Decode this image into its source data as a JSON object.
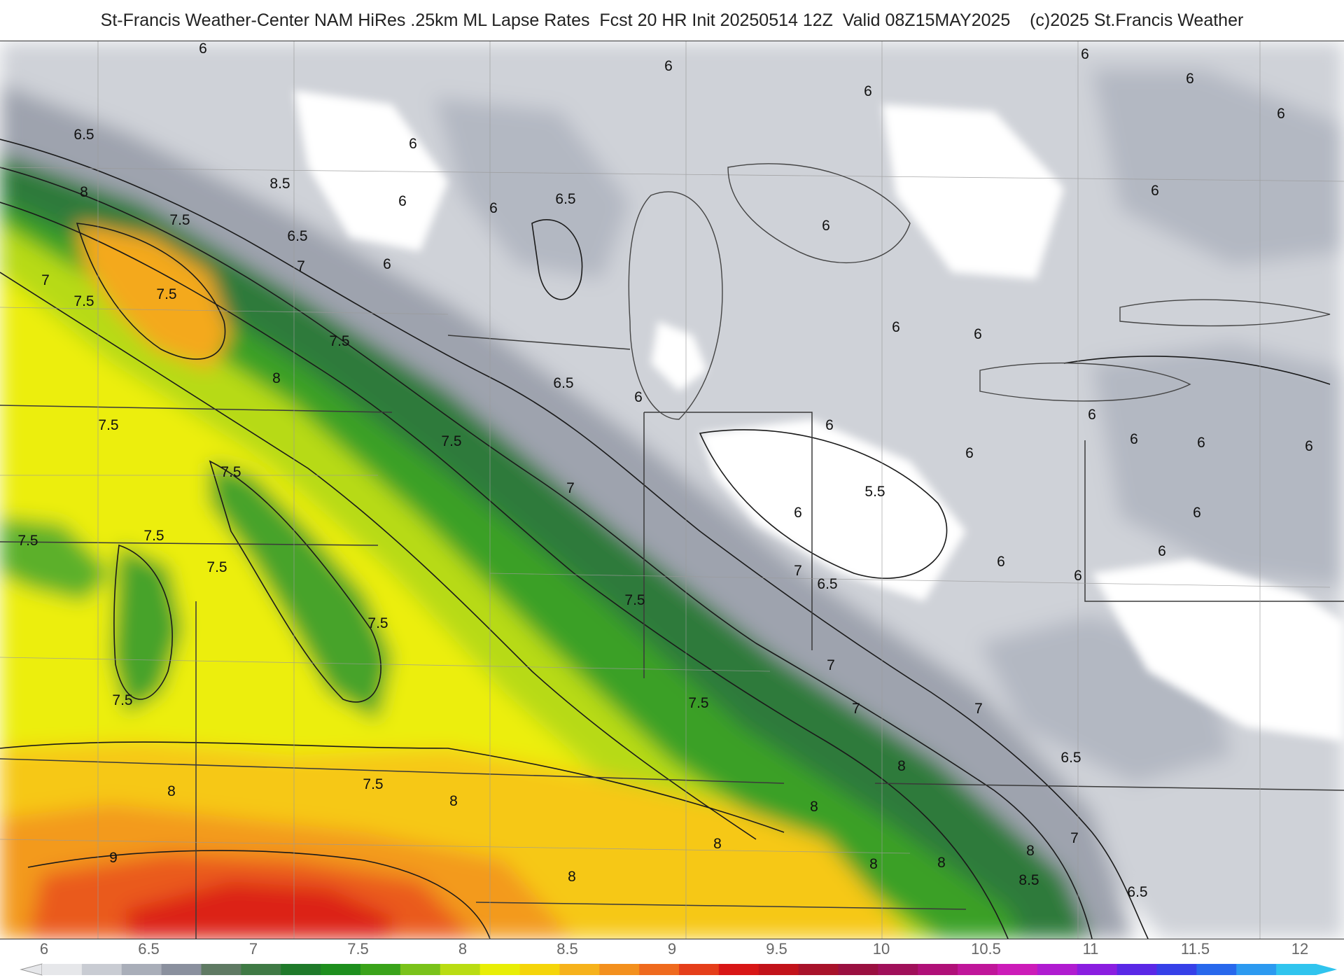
{
  "title": "St-Francis Weather-Center NAM HiRes .25km ML Lapse Rates  Fcst 20 HR Init 20250514 12Z  Valid 08Z15MAY2025    (c)2025 St.Francis Weather",
  "map": {
    "field": "ML Lapse Rates",
    "contour_labels": [
      "6",
      "6",
      "6",
      "6",
      "6",
      "6",
      "6",
      "6",
      "6",
      "6",
      "6",
      "6",
      "6",
      "6",
      "6",
      "6",
      "6",
      "6",
      "6",
      "6",
      "6",
      "6",
      "6",
      "6",
      "6",
      "6",
      "6.5",
      "6.5",
      "6.5",
      "6.5",
      "6.5",
      "6.5",
      "6.5",
      "5.5",
      "7",
      "7",
      "7",
      "7",
      "7",
      "7",
      "7",
      "7",
      "7.5",
      "7.5",
      "7.5",
      "7.5",
      "7.5",
      "7.5",
      "7.5",
      "7.5",
      "7.5",
      "7.5",
      "7.5",
      "7.5",
      "7.5",
      "7.5",
      "7.5",
      "8",
      "8",
      "8",
      "8",
      "8",
      "8",
      "8",
      "8",
      "8",
      "8",
      "8",
      "8.5",
      "8.5",
      "9"
    ]
  },
  "colorbar": {
    "ticks": [
      "6",
      "6.5",
      "7",
      "7.5",
      "8",
      "8.5",
      "9",
      "9.5",
      "10",
      "10.5",
      "11",
      "11.5",
      "12"
    ],
    "colors": [
      "#e6e7ea",
      "#c9ccd3",
      "#a9aeb9",
      "#8a909e",
      "#5f7a63",
      "#3f7a45",
      "#1f7a2a",
      "#1e8f1e",
      "#3aa31a",
      "#7ac21a",
      "#b9dc12",
      "#e8ee06",
      "#f5d50a",
      "#f6b21c",
      "#f3901e",
      "#ef6a1e",
      "#e53e1a",
      "#d81616",
      "#c2121a",
      "#a8122a",
      "#9a1040",
      "#a0105a",
      "#b01078",
      "#c0169a",
      "#cc1cb8",
      "#b01cd0",
      "#8a1ee0",
      "#5a28e6",
      "#3640e8",
      "#2868ec",
      "#2c9af0",
      "#30c4ee"
    ]
  }
}
